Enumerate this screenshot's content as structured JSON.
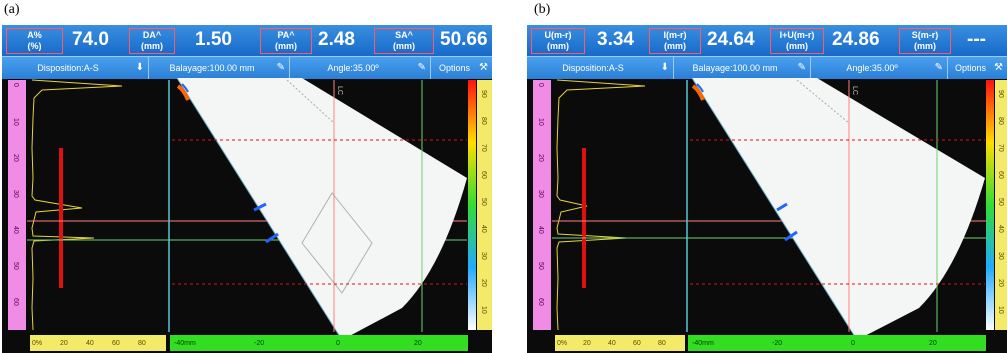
{
  "panels": [
    {
      "label": "(a)",
      "measurements": [
        {
          "label_line1": "A%",
          "label_line2": "(%)",
          "value": "74.0"
        },
        {
          "label_line1": "DA^",
          "label_line2": "(mm)",
          "value": "1.50"
        },
        {
          "label_line1": "PA^",
          "label_line2": "(mm)",
          "value": "2.48"
        },
        {
          "label_line1": "SA^",
          "label_line2": "(mm)",
          "value": "50.66"
        }
      ],
      "controls": [
        {
          "label": "Disposition:A-S",
          "icon": "pin-icon"
        },
        {
          "label": "Balayage:100.00 mm",
          "icon": "pencil-icon"
        },
        {
          "label": "Angle:35.00º",
          "icon": "pencil-icon"
        },
        {
          "label": "Options",
          "icon": "wrench-icon"
        }
      ],
      "depth_ticks": [
        "0",
        "10",
        "20",
        "30",
        "40",
        "50",
        "60"
      ],
      "amp_ticks": [
        "0%",
        "20",
        "40",
        "60",
        "80"
      ],
      "pos_ticks": [
        "-40mm",
        "-20",
        "0",
        "20"
      ],
      "right_ticks": [
        "90",
        "80",
        "70",
        "60",
        "50",
        "40",
        "30",
        "20",
        "10"
      ],
      "lc_label": "LC"
    },
    {
      "label": "(b)",
      "measurements": [
        {
          "label_line1": "U(m-r)",
          "label_line2": "(mm)",
          "value": "3.34"
        },
        {
          "label_line1": "I(m-r)",
          "label_line2": "(mm)",
          "value": "24.64"
        },
        {
          "label_line1": "I+U(m-r)",
          "label_line2": "(mm)",
          "value": "24.86"
        },
        {
          "label_line1": "S(m-r)",
          "label_line2": "(mm)",
          "value": "---"
        }
      ],
      "controls": [
        {
          "label": "Disposition:A-S",
          "icon": "pin-icon"
        },
        {
          "label": "Balayage:100.00 mm",
          "icon": "pencil-icon"
        },
        {
          "label": "Angle:35.00º",
          "icon": "pencil-icon"
        },
        {
          "label": "Options",
          "icon": "wrench-icon"
        }
      ],
      "depth_ticks": [
        "0",
        "10",
        "20",
        "30",
        "40",
        "50",
        "60"
      ],
      "amp_ticks": [
        "0%",
        "20",
        "40",
        "60",
        "80"
      ],
      "pos_ticks": [
        "-40mm",
        "-20",
        "0",
        "20"
      ],
      "right_ticks": [
        "90",
        "80",
        "70",
        "60",
        "50",
        "40",
        "30",
        "20",
        "10"
      ],
      "lc_label": "LC"
    }
  ],
  "colors": {
    "header_blue": "#1769c9",
    "control_blue": "#2a7fd6",
    "label_border": "#ff5a6a",
    "scale_magenta": "#f08ce6",
    "scale_yellow": "#f4ea6a",
    "scale_green": "#33dd22",
    "ascan_yellow": "#e8d23a",
    "gate_red": "#e01010",
    "cursor_cyan": "#58c8d8",
    "cursor_green": "#6fd26f"
  }
}
